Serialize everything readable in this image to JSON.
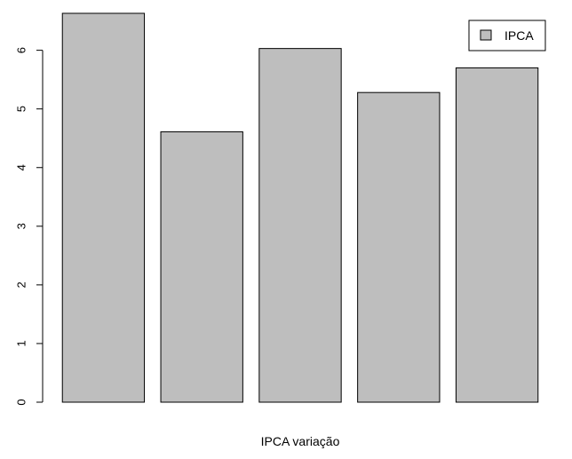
{
  "chart_data": {
    "type": "bar",
    "categories": [
      "",
      "",
      "",
      "",
      ""
    ],
    "series": [
      {
        "name": "IPCA",
        "values": [
          6.63,
          4.61,
          6.03,
          5.28,
          5.7
        ]
      }
    ],
    "title": "",
    "xlabel": "IPCA variação",
    "ylabel": "",
    "ylim": [
      0,
      6.63
    ],
    "yticks": [
      "0",
      "1",
      "2",
      "3",
      "4",
      "5",
      "6"
    ],
    "grid": false,
    "legend": {
      "position": "top-right",
      "entries": [
        "IPCA"
      ]
    },
    "colors": {
      "bar_fill": "#bebebe",
      "bar_border": "#000000"
    }
  }
}
